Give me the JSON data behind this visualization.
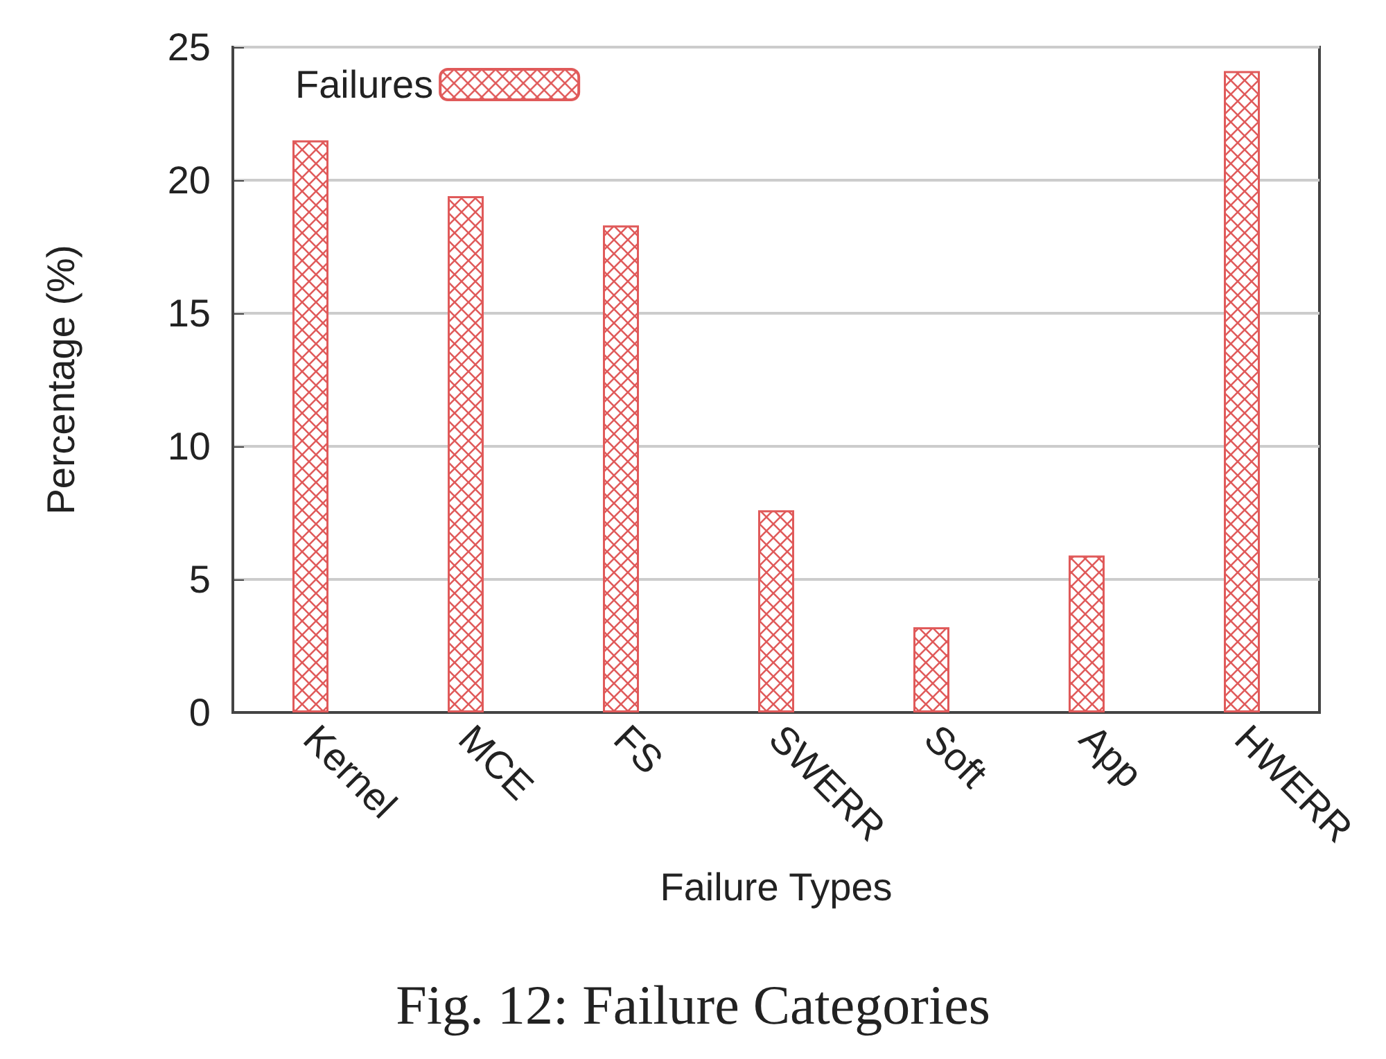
{
  "chart_data": {
    "type": "bar",
    "title": "Fig. 12: Failure Categories",
    "xlabel": "Failure Types",
    "ylabel": "Percentage (%)",
    "categories": [
      "Kernel",
      "MCE",
      "FS",
      "SWERR",
      "Soft",
      "App",
      "HWERR"
    ],
    "series": [
      {
        "name": "Failures",
        "color": "#e05a5a",
        "values": [
          21.5,
          19.4,
          18.3,
          7.6,
          3.2,
          5.9,
          24.1
        ]
      }
    ],
    "ylim": [
      0,
      25
    ],
    "yticks": [
      0,
      5,
      10,
      15,
      20,
      25
    ],
    "grid": "y",
    "legend": "top left"
  }
}
